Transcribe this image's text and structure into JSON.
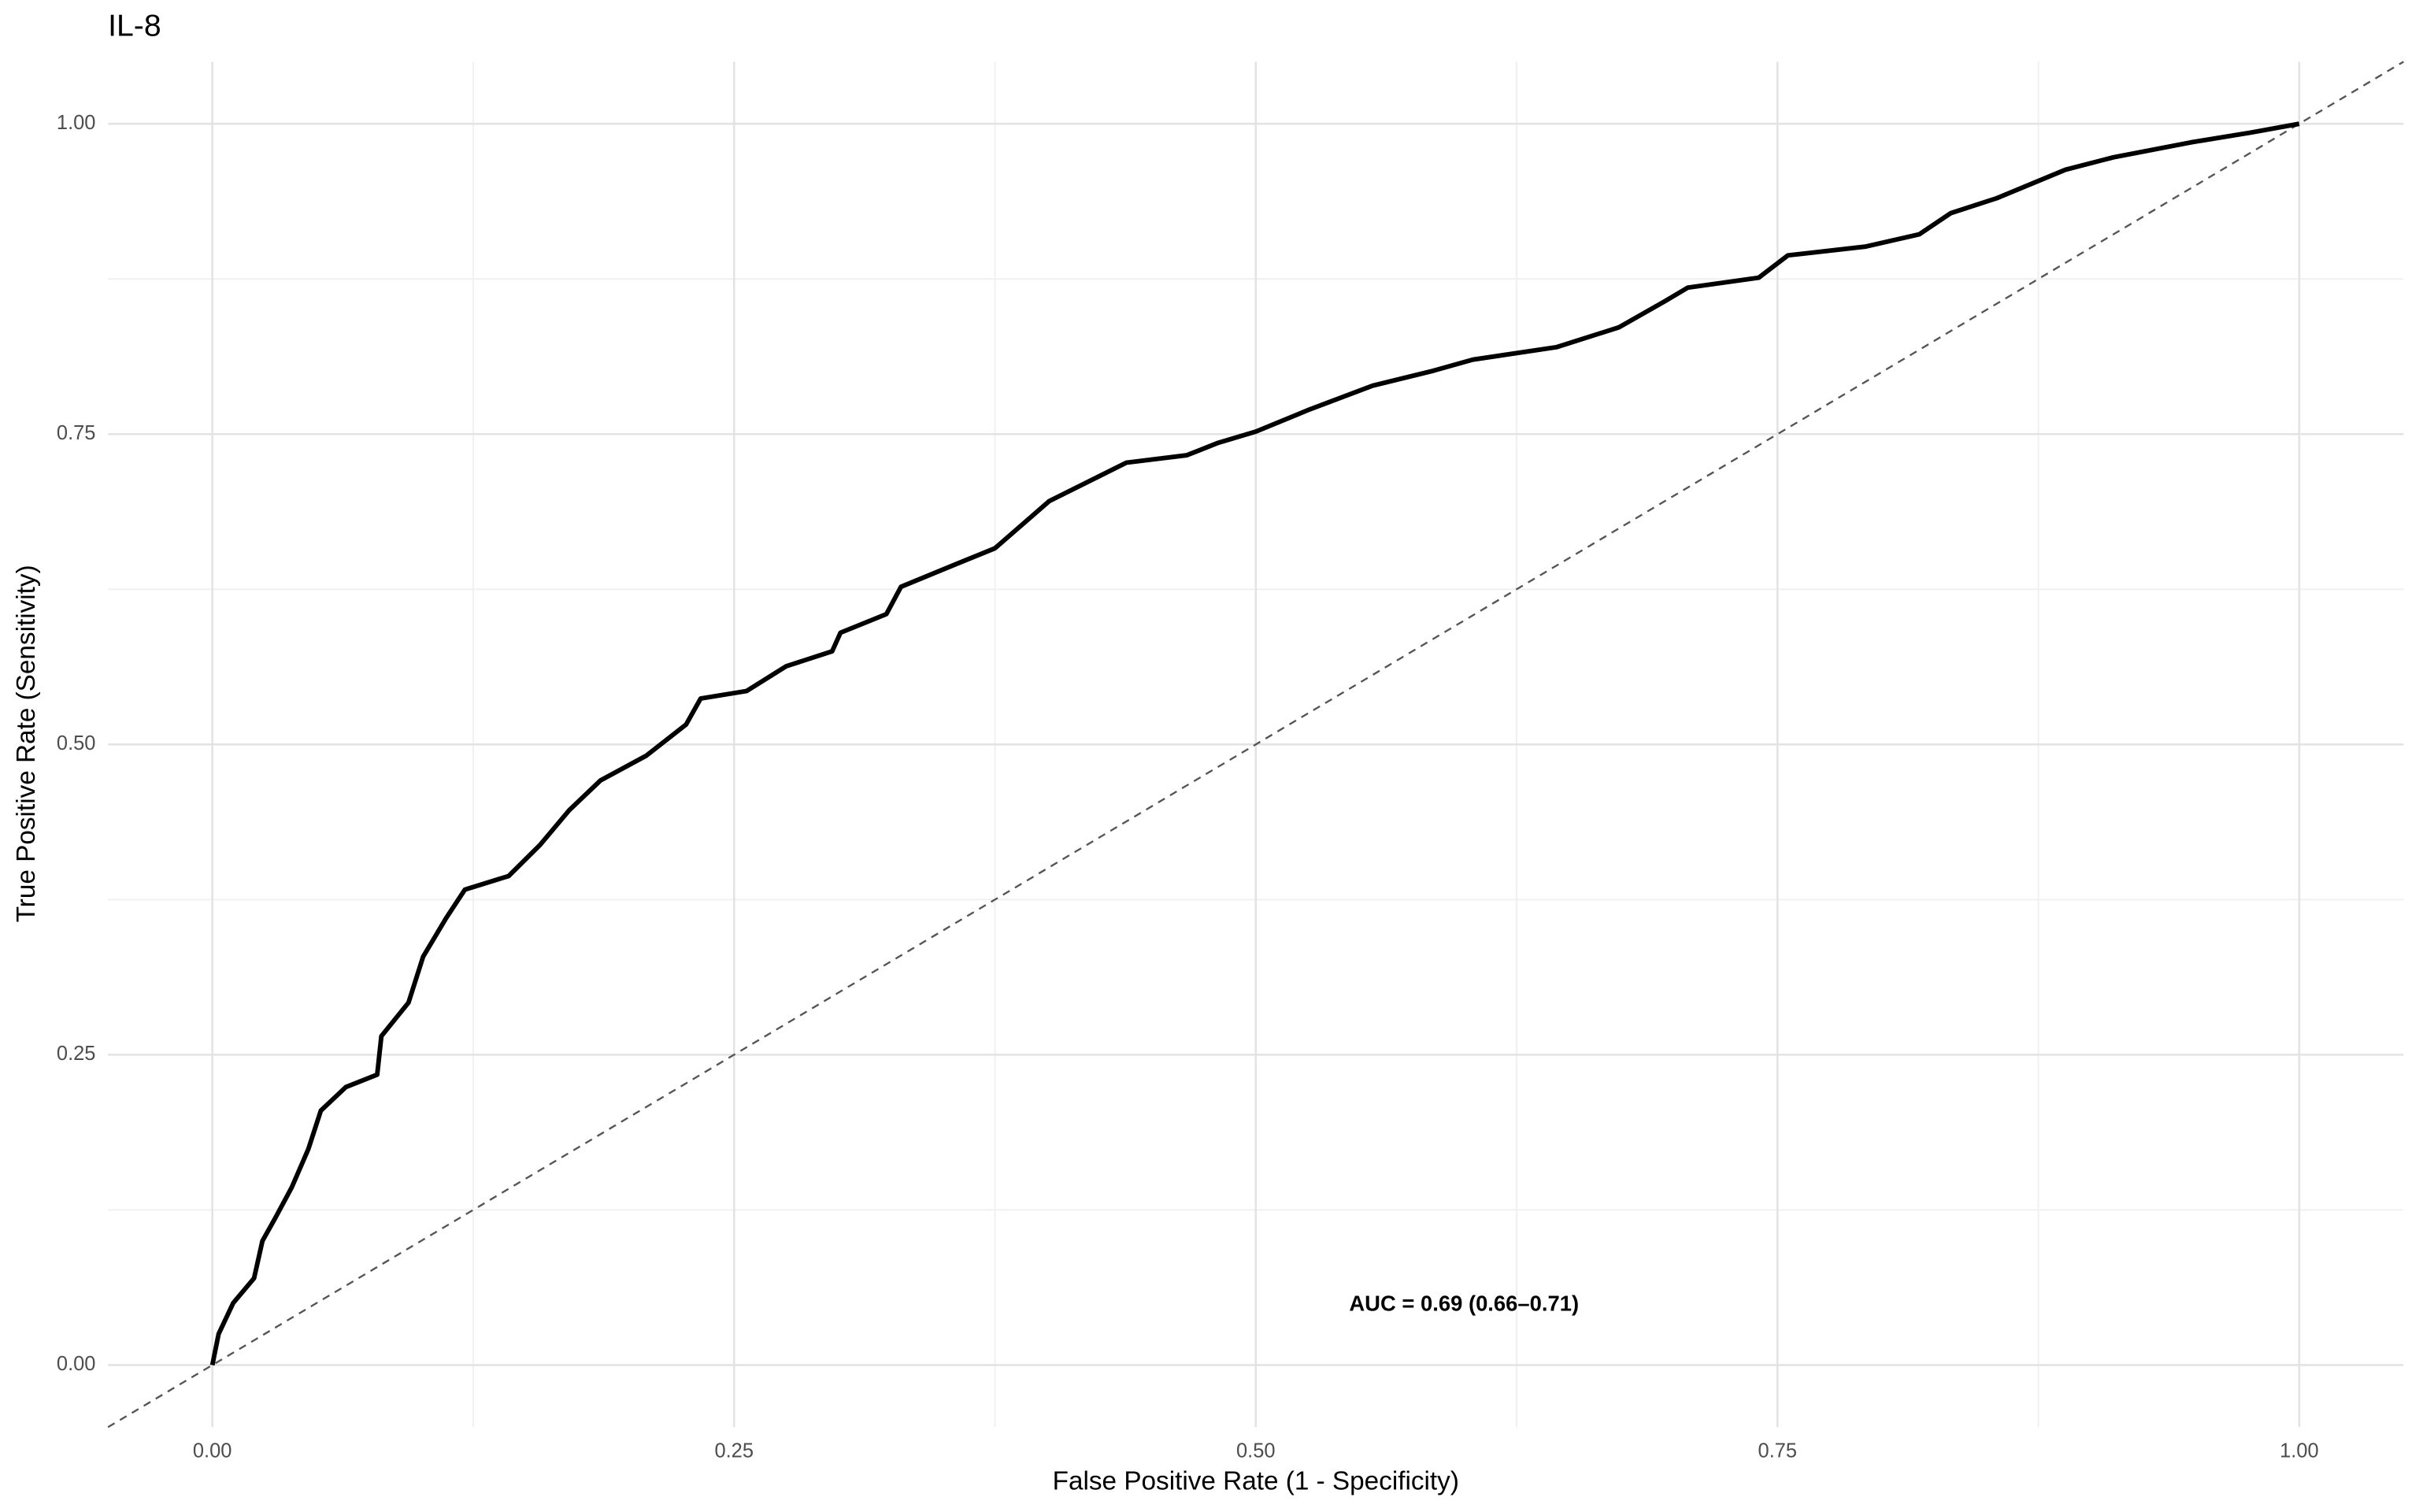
{
  "chart_data": {
    "type": "line",
    "title": "IL-8",
    "x_label": "False Positive Rate (1 - Specificity)",
    "y_label": "True Positive Rate (Sensitivity)",
    "annotation": "AUC = 0.69 (0.66–0.71)",
    "color": "#000000",
    "grid": true,
    "xlim": [
      -0.05,
      1.05
    ],
    "ylim": [
      -0.05,
      1.05
    ],
    "xticks": [
      {
        "value": 0,
        "label": "0.00"
      },
      {
        "value": 0.25,
        "label": "0.25"
      },
      {
        "value": 0.5,
        "label": "0.50"
      },
      {
        "value": 0.75,
        "label": "0.75"
      },
      {
        "value": 1,
        "label": "1.00"
      }
    ],
    "yticks": [
      {
        "value": 0,
        "label": "0.00"
      },
      {
        "value": 0.25,
        "label": "0.25"
      },
      {
        "value": 0.5,
        "label": "0.50"
      },
      {
        "value": 0.75,
        "label": "0.75"
      },
      {
        "value": 1,
        "label": "1.00"
      }
    ],
    "x": [
      0,
      0.003,
      0.01,
      0.02,
      0.024,
      0.03,
      0.038,
      0.046,
      0.052,
      0.064,
      0.079,
      0.081,
      0.094,
      0.101,
      0.112,
      0.121,
      0.142,
      0.157,
      0.171,
      0.186,
      0.208,
      0.227,
      0.234,
      0.256,
      0.275,
      0.297,
      0.301,
      0.323,
      0.33,
      0.356,
      0.375,
      0.401,
      0.438,
      0.467,
      0.482,
      0.5,
      0.526,
      0.556,
      0.585,
      0.604,
      0.644,
      0.674,
      0.696,
      0.707,
      0.741,
      0.755,
      0.792,
      0.818,
      0.833,
      0.855,
      0.888,
      0.911,
      0.948,
      0.977,
      1
    ],
    "values": [
      0,
      0.025,
      0.05,
      0.07,
      0.1,
      0.118,
      0.143,
      0.174,
      0.205,
      0.224,
      0.234,
      0.265,
      0.292,
      0.329,
      0.36,
      0.383,
      0.394,
      0.419,
      0.447,
      0.471,
      0.491,
      0.516,
      0.537,
      0.543,
      0.563,
      0.575,
      0.59,
      0.605,
      0.627,
      0.645,
      0.658,
      0.696,
      0.727,
      0.733,
      0.743,
      0.752,
      0.77,
      0.789,
      0.801,
      0.81,
      0.82,
      0.836,
      0.857,
      0.868,
      0.876,
      0.894,
      0.901,
      0.911,
      0.928,
      0.94,
      0.963,
      0.973,
      0.985,
      0.993,
      1
    ]
  }
}
